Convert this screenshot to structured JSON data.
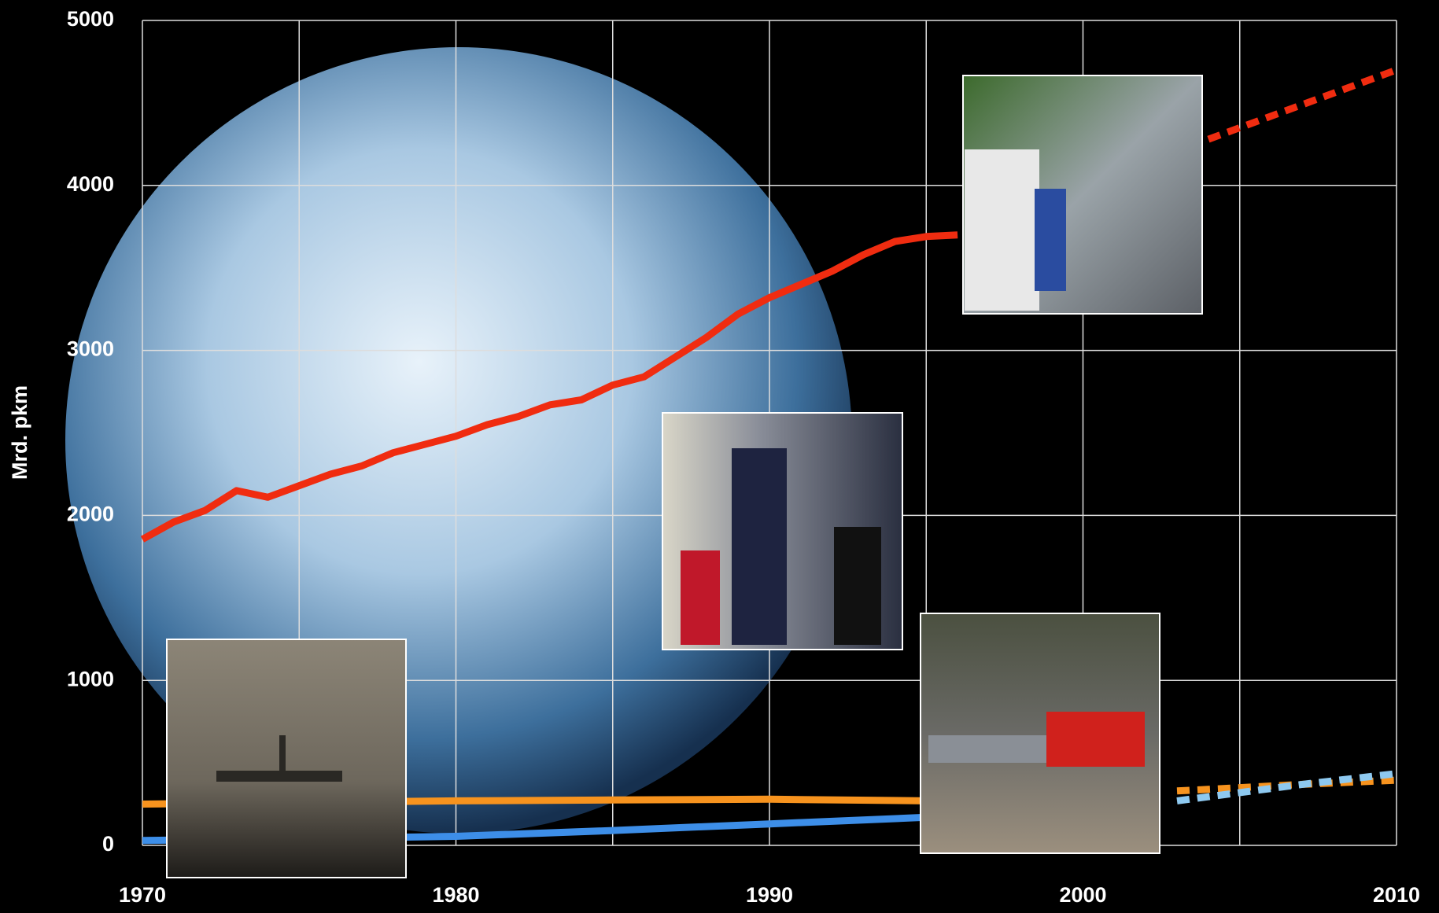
{
  "chart_data": {
    "type": "line",
    "y_label": "Mrd. pkm",
    "xlim": [
      1970,
      2010
    ],
    "xticks": [
      1970,
      1980,
      1990,
      2000,
      2010
    ],
    "xgrid": [
      1970,
      1975,
      1980,
      1985,
      1990,
      1995,
      2000,
      2005,
      2010
    ],
    "ylim": [
      0,
      5000
    ],
    "yticks": [
      0,
      1000,
      2000,
      3000,
      4000,
      5000
    ],
    "grid": true,
    "series": [
      {
        "color": "#f02c10",
        "dash": false,
        "x": [
          1970,
          1971,
          1972,
          1973,
          1974,
          1975,
          1976,
          1977,
          1978,
          1979,
          1980,
          1981,
          1982,
          1983,
          1984,
          1985,
          1986,
          1987,
          1988,
          1989,
          1990,
          1991,
          1992,
          1993,
          1994,
          1995,
          1996
        ],
        "values": [
          1855,
          1960,
          2030,
          2150,
          2110,
          2180,
          2250,
          2300,
          2380,
          2430,
          2480,
          2550,
          2600,
          2670,
          2700,
          2790,
          2840,
          2960,
          3080,
          3220,
          3320,
          3400,
          3480,
          3580,
          3660,
          3690,
          3700
        ]
      },
      {
        "color": "#f02c10",
        "dash": true,
        "x": [
          2004,
          2005,
          2006,
          2007,
          2008,
          2009,
          2010
        ],
        "values": [
          4280,
          4350,
          4420,
          4490,
          4560,
          4630,
          4700
        ]
      },
      {
        "color": "#f7931e",
        "dash": false,
        "x": [
          1970,
          1975,
          1980,
          1985,
          1990,
          1995
        ],
        "values": [
          250,
          260,
          270,
          275,
          280,
          270
        ]
      },
      {
        "color": "#f7931e",
        "dash": true,
        "x": [
          2003,
          2005,
          2007,
          2010
        ],
        "values": [
          330,
          350,
          370,
          395
        ]
      },
      {
        "color": "#3d8ee8",
        "dash": false,
        "x": [
          1970,
          1975,
          1980,
          1985,
          1990,
          1995
        ],
        "values": [
          30,
          40,
          55,
          90,
          130,
          170
        ]
      },
      {
        "color": "#8ec9f0",
        "dash": true,
        "x": [
          2003,
          2005,
          2007,
          2010
        ],
        "values": [
          270,
          320,
          370,
          435
        ]
      }
    ]
  }
}
